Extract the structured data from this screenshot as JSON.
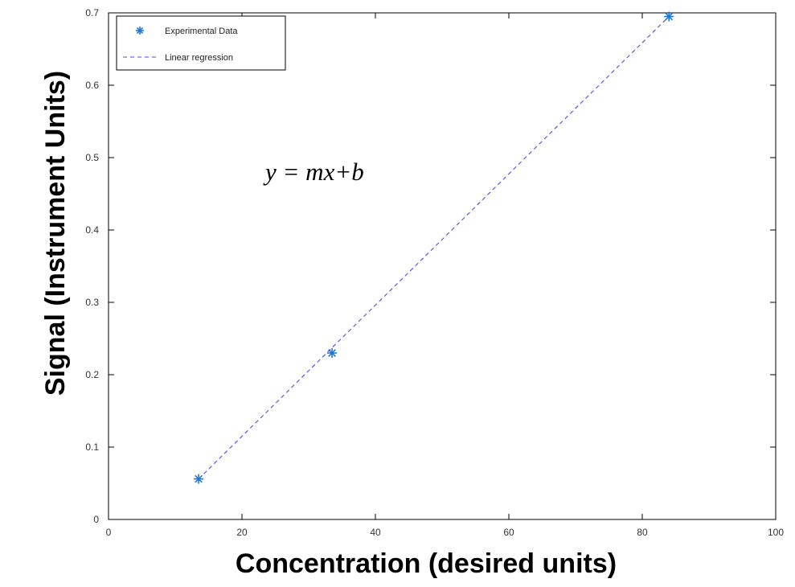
{
  "chart_data": {
    "type": "scatter",
    "xlabel": "Concentration (desired units)",
    "ylabel": "Signal (Instrument Units)",
    "xlim": [
      0,
      100
    ],
    "ylim": [
      0,
      0.7
    ],
    "x_ticks": [
      "0",
      "20",
      "40",
      "60",
      "80",
      "100"
    ],
    "y_ticks": [
      "0",
      "0.1",
      "0.2",
      "0.3",
      "0.4",
      "0.5",
      "0.6",
      "0.7"
    ],
    "grid": false,
    "legend_position": "top-left",
    "annotation": "y = mx+b",
    "series": [
      {
        "name": "Experimental Data",
        "marker": "asterisk",
        "color": "#1f77d4",
        "x": [
          13.5,
          33.5,
          84
        ],
        "y": [
          0.056,
          0.23,
          0.695
        ]
      },
      {
        "name": "Linear regression",
        "style": "dashed",
        "color": "#4a4af0",
        "x": [
          13.5,
          84
        ],
        "y": [
          0.056,
          0.695
        ]
      }
    ]
  }
}
